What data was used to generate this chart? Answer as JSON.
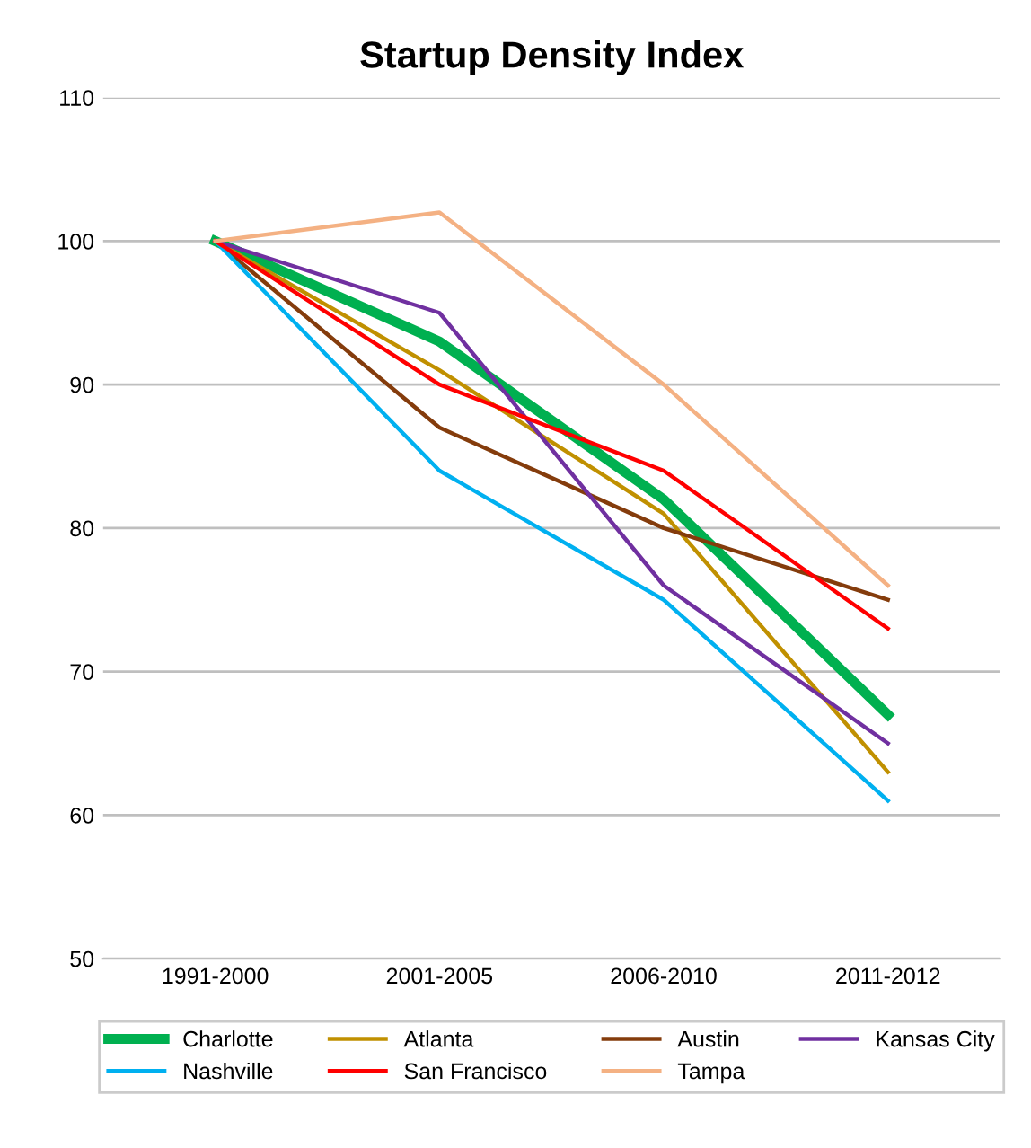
{
  "chart_data": {
    "type": "line",
    "title": "Startup Density Index",
    "categories": [
      "1991-2000",
      "2001-2005",
      "2006-2010",
      "2011-2012"
    ],
    "series": [
      {
        "name": "Charlotte",
        "color": "#00b050",
        "values": [
          100,
          93,
          82,
          67
        ]
      },
      {
        "name": "Atlanta",
        "color": "#c09000",
        "values": [
          100,
          91,
          81,
          63
        ]
      },
      {
        "name": "Austin",
        "color": "#843c0c",
        "values": [
          100,
          87,
          80,
          75
        ]
      },
      {
        "name": "Kansas City",
        "color": "#7030a0",
        "values": [
          100,
          95,
          76,
          65
        ]
      },
      {
        "name": "Nashville",
        "color": "#00b0f0",
        "values": [
          100,
          84,
          75,
          61
        ]
      },
      {
        "name": "San Francisco",
        "color": "#ff0000",
        "values": [
          100,
          90,
          84,
          73
        ]
      },
      {
        "name": "Tampa",
        "color": "#f4b183",
        "values": [
          100,
          102,
          90,
          76
        ]
      }
    ],
    "ylim": [
      50,
      110
    ],
    "yticks": [
      50,
      60,
      70,
      80,
      90,
      100,
      110
    ],
    "grid": "y",
    "legend": "bottom",
    "marker": "none",
    "line_style": "solid"
  }
}
